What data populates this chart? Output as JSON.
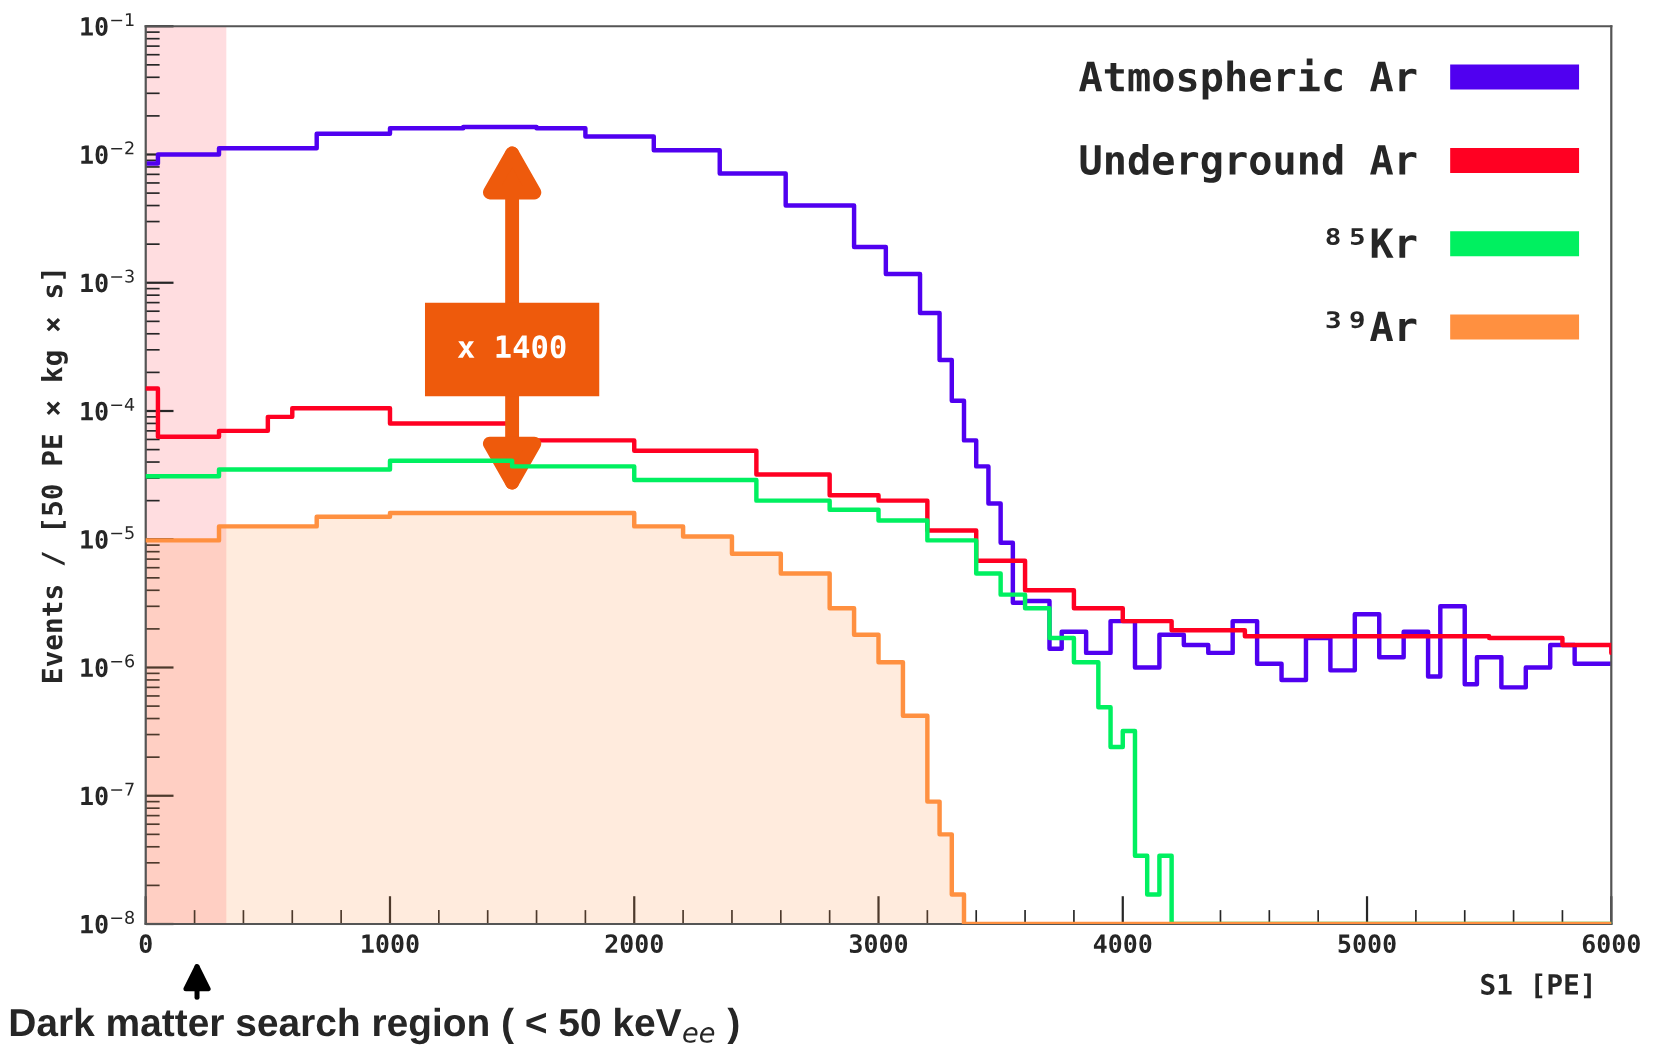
{
  "chart_data": {
    "type": "step",
    "xlabel": "S1 [PE]",
    "ylabel": "Events / [50 PE × kg × s]",
    "xlim": [
      0,
      6000
    ],
    "xticks": [
      0,
      1000,
      2000,
      3000,
      4000,
      5000,
      6000
    ],
    "ylim": [
      1e-08,
      0.1
    ],
    "yticks": [
      {
        "value": 1e-08,
        "label": "10$^{−8}$"
      },
      {
        "value": 1e-07,
        "label": "10$^{−7}$"
      },
      {
        "value": 1e-06,
        "label": "10$^{−6}$"
      },
      {
        "value": 1e-05,
        "label": "10$^{−5}$"
      },
      {
        "value": 0.0001,
        "label": "10$^{−4}$"
      },
      {
        "value": 0.001,
        "label": "10$^{−3}$"
      },
      {
        "value": 0.01,
        "label": "10$^{−2}$"
      },
      {
        "value": 0.1,
        "label": "10$^{−1}$"
      }
    ],
    "log": "y",
    "grid": false,
    "legend": "top right",
    "bands": [
      {
        "axis": "x",
        "from": 0,
        "to": 330,
        "color": "#ffdde0"
      }
    ],
    "annotations": [
      "x 1400",
      "Dark matter search region ( < 50 keV$_{ee}$ )"
    ],
    "series": [
      {
        "name": "Atmospheric Ar",
        "color": "#5000f0",
        "x": [
          0,
          50,
          300,
          700,
          1000,
          1300,
          1600,
          1800,
          2080,
          2350,
          2620,
          2900,
          3030,
          3170,
          3250,
          3300,
          3350,
          3400,
          3450,
          3500,
          3550,
          3600,
          3700,
          3750,
          3850,
          3950,
          4050,
          4150,
          4250,
          4350,
          4450,
          4550,
          4650,
          4750,
          4850,
          4950,
          5050,
          5150,
          5250,
          5300,
          5400,
          5450,
          5550,
          5650,
          5750,
          5850,
          6000
        ],
        "values": [
          0.0085,
          0.01,
          0.0112,
          0.0145,
          0.016,
          0.0164,
          0.016,
          0.0138,
          0.0108,
          0.0071,
          0.004,
          0.0019,
          0.00117,
          0.00058,
          0.00025,
          0.00012,
          5.9e-05,
          3.7e-05,
          1.9e-05,
          9.4e-06,
          3.2e-06,
          3.3e-06,
          1.4e-06,
          1.9e-06,
          1.3e-06,
          2.3e-06,
          1e-06,
          1.8e-06,
          1.5e-06,
          1.3e-06,
          2.3e-06,
          1.07e-06,
          8e-07,
          1.7e-06,
          9.5e-07,
          2.6e-06,
          1.2e-06,
          1.9e-06,
          8.5e-07,
          3e-06,
          7.4e-07,
          1.2e-06,
          7e-07,
          1e-06,
          1.5e-06,
          1.07e-06,
          1.07e-06
        ]
      },
      {
        "name": "Underground Ar",
        "color": "#ff0022",
        "x": [
          0,
          50,
          300,
          500,
          600,
          1000,
          1500,
          2000,
          2500,
          2800,
          3000,
          3200,
          3400,
          3600,
          3800,
          4000,
          4200,
          4500,
          5000,
          5500,
          5800,
          6000
        ],
        "values": [
          0.00015,
          6.3e-05,
          7e-05,
          9e-05,
          0.000105,
          8e-05,
          5.9e-05,
          4.9e-05,
          3.2e-05,
          2.2e-05,
          2e-05,
          1.17e-05,
          6.8e-06,
          4e-06,
          2.9e-06,
          2.3e-06,
          1.95e-06,
          1.75e-06,
          1.75e-06,
          1.7e-06,
          1.5e-06,
          1.3e-06
        ]
      },
      {
        "name": "⁸⁵Kr",
        "color": "#00f060",
        "x": [
          0,
          300,
          1000,
          1500,
          2000,
          2500,
          2800,
          3000,
          3200,
          3400,
          3500,
          3600,
          3700,
          3800,
          3900,
          3950,
          4000,
          4050,
          4100,
          4150,
          4200,
          6000
        ],
        "values": [
          3.1e-05,
          3.5e-05,
          4.1e-05,
          3.7e-05,
          2.9e-05,
          2e-05,
          1.7e-05,
          1.4e-05,
          9.8e-06,
          5.4e-06,
          3.7e-06,
          2.9e-06,
          1.7e-06,
          1.1e-06,
          4.9e-07,
          2.4e-07,
          3.2e-07,
          3.4e-08,
          1.7e-08,
          3.4e-08,
          1e-08,
          1e-08
        ]
      },
      {
        "name": "³⁹Ar",
        "type": "area",
        "color": "#ff9040",
        "x": [
          0,
          300,
          700,
          1000,
          1500,
          2000,
          2200,
          2400,
          2600,
          2800,
          2900,
          3000,
          3100,
          3200,
          3250,
          3300,
          3350,
          6000
        ],
        "values": [
          9.8e-06,
          1.26e-05,
          1.5e-05,
          1.6e-05,
          1.6e-05,
          1.26e-05,
          1.05e-05,
          7.7e-06,
          5.4e-06,
          2.9e-06,
          1.8e-06,
          1.1e-06,
          4.2e-07,
          9e-08,
          5e-08,
          1.7e-08,
          1e-08,
          1e-08
        ]
      }
    ]
  }
}
